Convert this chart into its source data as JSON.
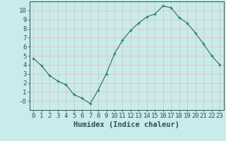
{
  "x": [
    0,
    1,
    2,
    3,
    4,
    5,
    6,
    7,
    8,
    9,
    10,
    11,
    12,
    13,
    14,
    15,
    16,
    17,
    18,
    19,
    20,
    21,
    22,
    23
  ],
  "y": [
    4.7,
    3.9,
    2.8,
    2.2,
    1.8,
    0.7,
    0.3,
    -0.3,
    1.2,
    3.0,
    5.2,
    6.7,
    7.8,
    8.6,
    9.3,
    9.6,
    10.5,
    10.3,
    9.2,
    8.6,
    7.5,
    6.3,
    5.0,
    4.0
  ],
  "title": "",
  "xlabel": "Humidex (Indice chaleur)",
  "ylabel": "",
  "line_color": "#2e7d6e",
  "marker": "+",
  "bg_color": "#c8ecec",
  "grid_color": "#e8b8b8",
  "axis_color": "#2e5050",
  "xlim": [
    -0.5,
    23.5
  ],
  "ylim": [
    -1.0,
    11.0
  ],
  "yticks": [
    0,
    1,
    2,
    3,
    4,
    5,
    6,
    7,
    8,
    9,
    10
  ],
  "ytick_labels": [
    "-0",
    "1",
    "2",
    "3",
    "4",
    "5",
    "6",
    "7",
    "8",
    "9",
    "10"
  ],
  "xticks": [
    0,
    1,
    2,
    3,
    4,
    5,
    6,
    7,
    8,
    9,
    10,
    11,
    12,
    13,
    14,
    15,
    16,
    17,
    18,
    19,
    20,
    21,
    22,
    23
  ],
  "font_size": 6.5,
  "label_font_size": 7.5
}
